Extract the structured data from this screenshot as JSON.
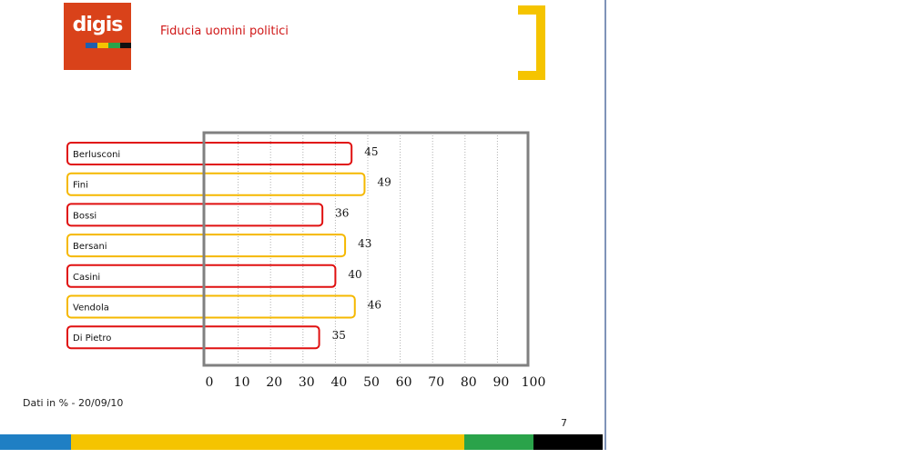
{
  "header": {
    "logo_text": "digis",
    "logo_stripe_colors": [
      "#1f5fae",
      "#f5c400",
      "#2aa34a",
      "#111111"
    ],
    "title": "Fiducia uomini politici"
  },
  "colors": {
    "logo_background": "#d9421a",
    "title": "#d01717",
    "bar_red": "#e01010",
    "bar_yellow": "#f5b800",
    "frame": "#808080",
    "bracket": "#f5c400",
    "bottom_bar": [
      "#1f7fc4",
      "#f5c400",
      "#2aa34a",
      "#000000"
    ]
  },
  "chart_data": {
    "type": "bar",
    "orientation": "horizontal",
    "categories": [
      "Berlusconi",
      "Fini",
      "Bossi",
      "Bersani",
      "Casini",
      "Vendola",
      "Di Pietro"
    ],
    "values": [
      45,
      49,
      36,
      43,
      40,
      46,
      35
    ],
    "bar_colors": [
      "red",
      "yellow",
      "red",
      "yellow",
      "red",
      "yellow",
      "red"
    ],
    "xlim": [
      0,
      100
    ],
    "x_ticks": [
      "0",
      "10",
      "20",
      "30",
      "40",
      "50",
      "60",
      "70",
      "80",
      "90",
      "100"
    ],
    "grid": "vertical dashed",
    "title": "",
    "xlabel": "",
    "ylabel": ""
  },
  "footer": {
    "note": "Dati in % - 20/09/10",
    "page_number": "7"
  }
}
